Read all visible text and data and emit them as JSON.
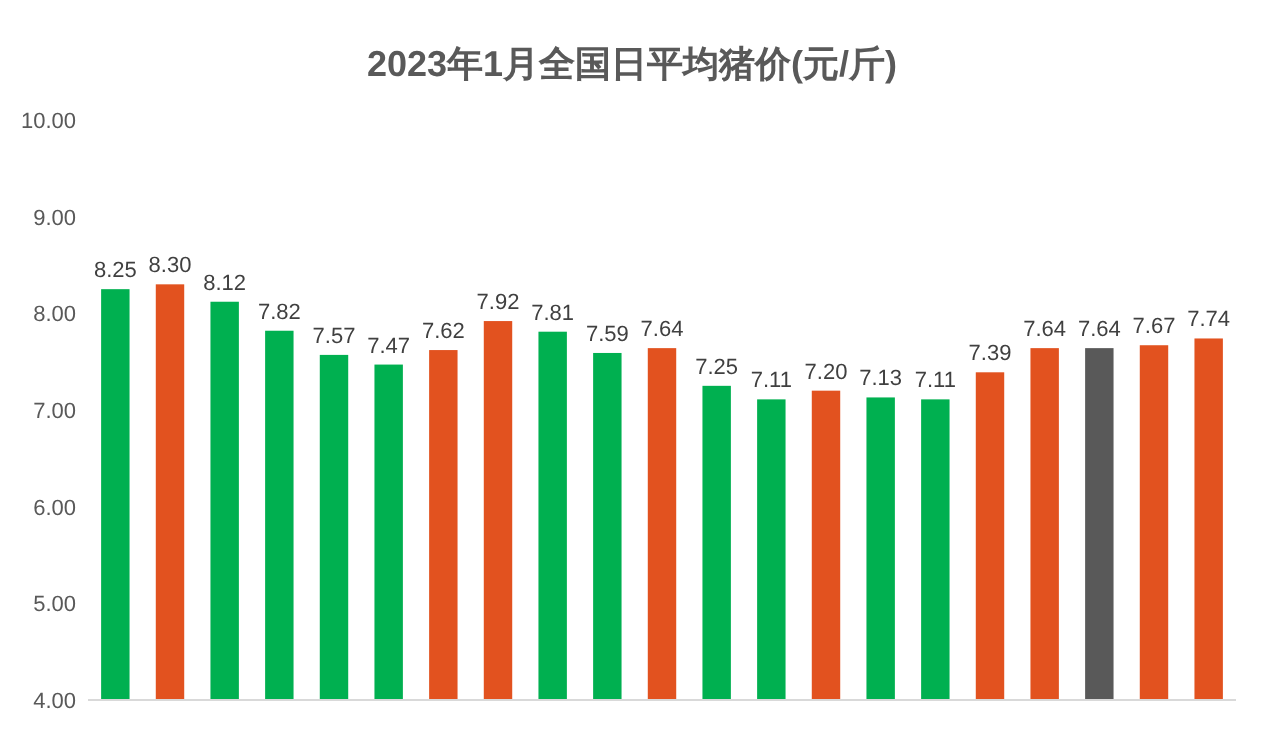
{
  "chart_data": {
    "type": "bar",
    "title": "2023年1月全国日平均猪价(元/斤)",
    "categories": [
      null,
      null,
      null,
      null,
      null,
      null,
      null,
      null,
      null,
      null,
      null,
      null,
      null,
      null,
      null,
      null,
      null,
      null,
      null,
      null,
      null
    ],
    "values": [
      8.25,
      8.3,
      8.12,
      7.82,
      7.57,
      7.47,
      7.62,
      7.92,
      7.81,
      7.59,
      7.64,
      7.25,
      7.11,
      7.2,
      7.13,
      7.11,
      7.39,
      7.64,
      7.64,
      7.67,
      7.74
    ],
    "value_labels": [
      "8.25",
      "8.30",
      "8.12",
      "7.82",
      "7.57",
      "7.47",
      "7.62",
      "7.92",
      "7.81",
      "7.59",
      "7.64",
      "7.25",
      "7.11",
      "7.20",
      "7.13",
      "7.11",
      "7.39",
      "7.64",
      "7.64",
      "7.67",
      "7.74"
    ],
    "colors": [
      "#00b050",
      "#e2521f",
      "#00b050",
      "#00b050",
      "#00b050",
      "#00b050",
      "#e2521f",
      "#e2521f",
      "#00b050",
      "#00b050",
      "#e2521f",
      "#00b050",
      "#00b050",
      "#e2521f",
      "#00b050",
      "#00b050",
      "#e2521f",
      "#e2521f",
      "#595959",
      "#e2521f",
      "#e2521f"
    ],
    "ylim": [
      4,
      10
    ],
    "yticks": [
      {
        "value": 4,
        "label": "4.00"
      },
      {
        "value": 5,
        "label": "5.00"
      },
      {
        "value": 6,
        "label": "6.00"
      },
      {
        "value": 7,
        "label": "7.00"
      },
      {
        "value": 8,
        "label": "8.00"
      },
      {
        "value": 9,
        "label": "9.00"
      },
      {
        "value": 10,
        "label": "10.00"
      }
    ],
    "grid": false
  }
}
